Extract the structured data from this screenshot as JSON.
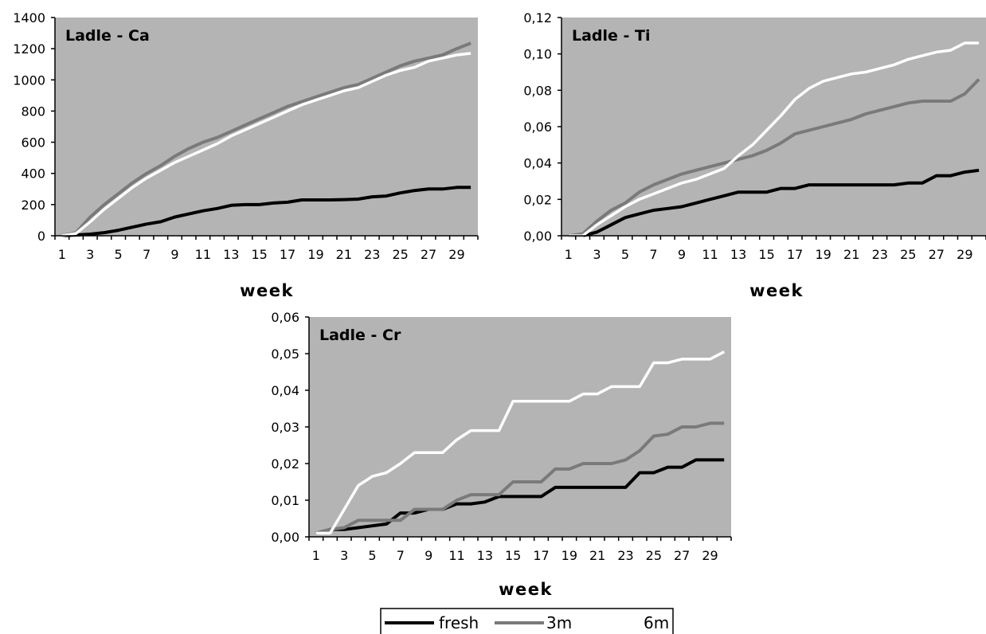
{
  "chart_data": [
    {
      "type": "line",
      "title": "Ladle - Ca",
      "xlabel": "week",
      "ylabel": "",
      "ylim": [
        0,
        1400
      ],
      "yticks": [
        "0",
        "200",
        "400",
        "600",
        "800",
        "1000",
        "1200",
        "1400"
      ],
      "xticks": [
        "1",
        "3",
        "5",
        "7",
        "9",
        "11",
        "13",
        "15",
        "17",
        "19",
        "21",
        "23",
        "25",
        "27",
        "29"
      ],
      "x": [
        1,
        2,
        3,
        4,
        5,
        6,
        7,
        8,
        9,
        10,
        11,
        12,
        13,
        14,
        15,
        16,
        17,
        18,
        19,
        20,
        21,
        22,
        23,
        24,
        25,
        26,
        27,
        28,
        29,
        30
      ],
      "grid": false,
      "series": [
        {
          "name": "fresh",
          "values": [
            0,
            5,
            10,
            20,
            35,
            55,
            75,
            90,
            120,
            140,
            160,
            175,
            195,
            200,
            200,
            210,
            215,
            230,
            230,
            230,
            232,
            235,
            250,
            255,
            275,
            290,
            300,
            300,
            310,
            310
          ]
        },
        {
          "name": "3m",
          "values": [
            0,
            20,
            120,
            200,
            270,
            340,
            400,
            450,
            510,
            560,
            600,
            630,
            670,
            710,
            750,
            790,
            830,
            860,
            890,
            920,
            950,
            970,
            1010,
            1050,
            1090,
            1120,
            1140,
            1160,
            1200,
            1235
          ]
        },
        {
          "name": "6m",
          "values": [
            0,
            15,
            90,
            170,
            240,
            310,
            370,
            420,
            470,
            510,
            550,
            590,
            640,
            680,
            720,
            760,
            800,
            840,
            870,
            900,
            930,
            950,
            990,
            1030,
            1060,
            1080,
            1120,
            1140,
            1160,
            1170
          ]
        }
      ]
    },
    {
      "type": "line",
      "title": "Ladle - Ti",
      "xlabel": "week",
      "ylabel": "",
      "ylim": [
        0,
        0.12
      ],
      "yticks": [
        "0,00",
        "0,02",
        "0,04",
        "0,06",
        "0,08",
        "0,10",
        "0,12"
      ],
      "xticks": [
        "1",
        "3",
        "5",
        "7",
        "9",
        "11",
        "13",
        "15",
        "17",
        "19",
        "21",
        "23",
        "25",
        "27",
        "29"
      ],
      "x": [
        1,
        2,
        3,
        4,
        5,
        6,
        7,
        8,
        9,
        10,
        11,
        12,
        13,
        14,
        15,
        16,
        17,
        18,
        19,
        20,
        21,
        22,
        23,
        24,
        25,
        26,
        27,
        28,
        29,
        30
      ],
      "grid": false,
      "series": [
        {
          "name": "fresh",
          "values": [
            0,
            0,
            0.002,
            0.006,
            0.01,
            0.012,
            0.014,
            0.015,
            0.016,
            0.018,
            0.02,
            0.022,
            0.024,
            0.024,
            0.024,
            0.026,
            0.026,
            0.028,
            0.028,
            0.028,
            0.028,
            0.028,
            0.028,
            0.028,
            0.029,
            0.029,
            0.033,
            0.033,
            0.035,
            0.036
          ]
        },
        {
          "name": "3m",
          "values": [
            0,
            0.001,
            0.008,
            0.014,
            0.018,
            0.024,
            0.028,
            0.031,
            0.034,
            0.036,
            0.038,
            0.04,
            0.042,
            0.044,
            0.047,
            0.051,
            0.056,
            0.058,
            0.06,
            0.062,
            0.064,
            0.067,
            0.069,
            0.071,
            0.073,
            0.074,
            0.074,
            0.074,
            0.078,
            0.086
          ]
        },
        {
          "name": "6m",
          "values": [
            0,
            0,
            0.006,
            0.011,
            0.016,
            0.02,
            0.023,
            0.026,
            0.029,
            0.031,
            0.034,
            0.037,
            0.044,
            0.05,
            0.058,
            0.066,
            0.075,
            0.081,
            0.085,
            0.087,
            0.089,
            0.09,
            0.092,
            0.094,
            0.097,
            0.099,
            0.101,
            0.102,
            0.106,
            0.106
          ]
        }
      ]
    },
    {
      "type": "line",
      "title": "Ladle - Cr",
      "xlabel": "week",
      "ylabel": "",
      "ylim": [
        0,
        0.06
      ],
      "yticks": [
        "0,00",
        "0,01",
        "0,02",
        "0,03",
        "0,04",
        "0,05",
        "0,06"
      ],
      "xticks": [
        "1",
        "3",
        "5",
        "7",
        "9",
        "11",
        "13",
        "15",
        "17",
        "19",
        "21",
        "23",
        "25",
        "27",
        "29"
      ],
      "x": [
        1,
        2,
        3,
        4,
        5,
        6,
        7,
        8,
        9,
        10,
        11,
        12,
        13,
        14,
        15,
        16,
        17,
        18,
        19,
        20,
        21,
        22,
        23,
        24,
        25,
        26,
        27,
        28,
        29,
        30
      ],
      "grid": false,
      "series": [
        {
          "name": "fresh",
          "values": [
            0.001,
            0.002,
            0.002,
            0.0025,
            0.003,
            0.0035,
            0.0065,
            0.0065,
            0.0075,
            0.0075,
            0.009,
            0.009,
            0.0095,
            0.011,
            0.011,
            0.011,
            0.011,
            0.0135,
            0.0135,
            0.0135,
            0.0135,
            0.0135,
            0.0135,
            0.0175,
            0.0175,
            0.019,
            0.019,
            0.021,
            0.021,
            0.021
          ]
        },
        {
          "name": "3m",
          "values": [
            0.001,
            0.002,
            0.0025,
            0.0045,
            0.0045,
            0.0045,
            0.0045,
            0.0075,
            0.0075,
            0.0075,
            0.01,
            0.0115,
            0.0115,
            0.0115,
            0.015,
            0.015,
            0.015,
            0.0185,
            0.0185,
            0.02,
            0.02,
            0.02,
            0.021,
            0.0235,
            0.0275,
            0.028,
            0.03,
            0.03,
            0.031,
            0.031
          ]
        },
        {
          "name": "6m",
          "values": [
            0.001,
            0.001,
            0.0075,
            0.014,
            0.0165,
            0.0175,
            0.02,
            0.023,
            0.023,
            0.023,
            0.0265,
            0.029,
            0.029,
            0.029,
            0.037,
            0.037,
            0.037,
            0.037,
            0.037,
            0.039,
            0.039,
            0.041,
            0.041,
            0.041,
            0.0475,
            0.0475,
            0.0485,
            0.0485,
            0.0485,
            0.0505
          ]
        }
      ]
    }
  ],
  "legend": {
    "items": [
      {
        "label": "fresh",
        "color": "#000000"
      },
      {
        "label": "3m",
        "color": "#7a7a7a"
      },
      {
        "label": "6m",
        "color": "#ffffff"
      }
    ]
  },
  "colors": {
    "plot_background": "#b4b4b4",
    "fresh": "#000000",
    "3m": "#7a7a7a",
    "6m": "#ffffff"
  }
}
